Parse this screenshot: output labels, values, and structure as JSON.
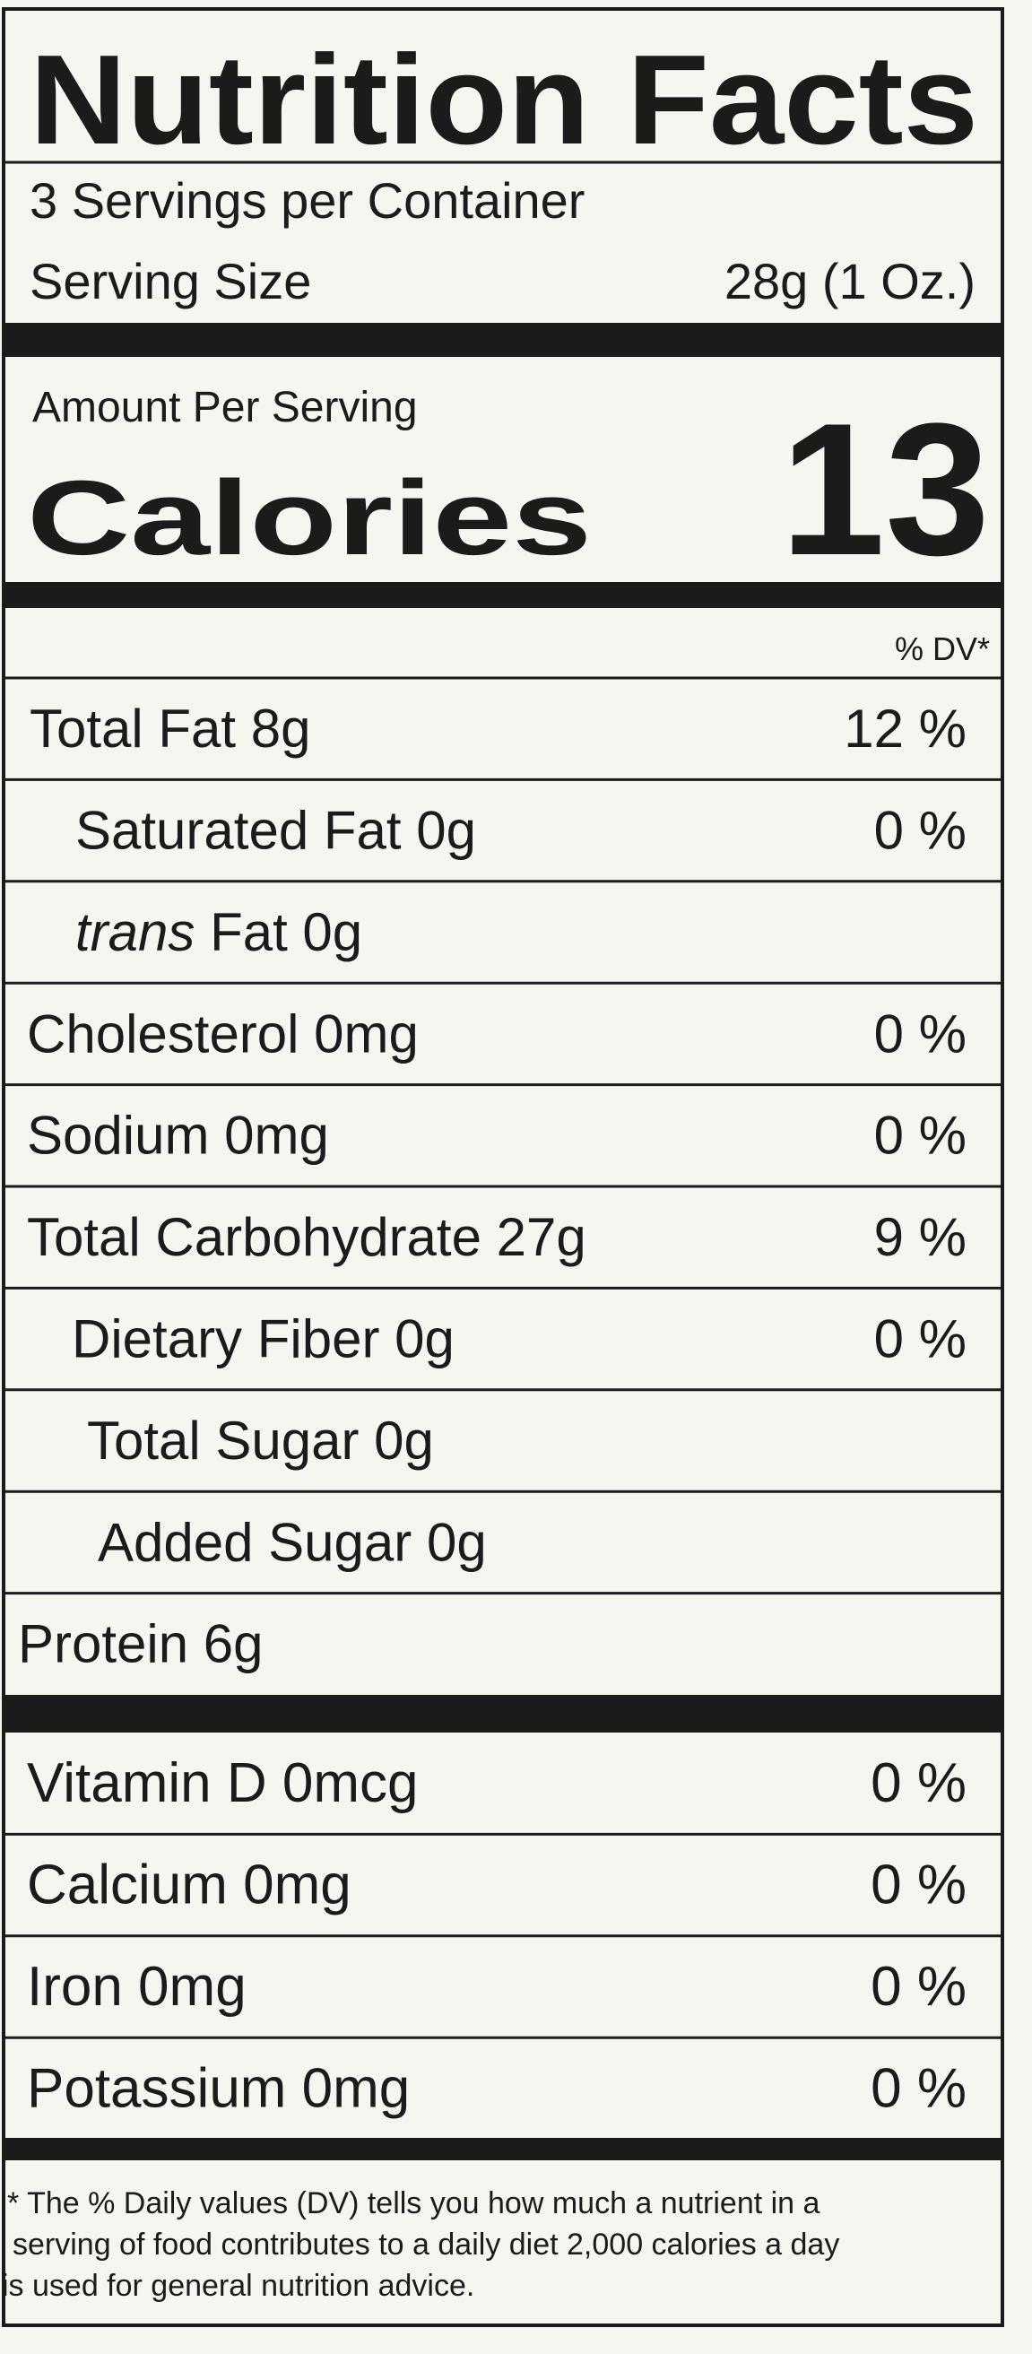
{
  "title": "Nutrition Facts",
  "servings": "3 Servings per Container",
  "serving_size": {
    "label": "Serving Size",
    "value": "28g (1 Oz.)"
  },
  "amount_per_serving": "Amount Per Serving",
  "calories": {
    "label": "Calories",
    "value": "13"
  },
  "dv_header": "% DV*",
  "nutrients": [
    {
      "label": "Total Fat 8g",
      "dv": "12 %"
    },
    {
      "label": "Saturated Fat 0g",
      "dv": "0 %"
    },
    {
      "label_italic": "trans",
      "label": "Fat 0g"
    },
    {
      "label": "Cholesterol 0mg",
      "dv": "0 %"
    },
    {
      "label": "Sodium 0mg",
      "dv": "0 %"
    },
    {
      "label": "Total Carbohydrate 27g",
      "dv": "9 %"
    },
    {
      "label": "Dietary Fiber 0g",
      "dv": "0 %"
    },
    {
      "label": "Total Sugar 0g"
    },
    {
      "label": "Added Sugar 0g"
    },
    {
      "label": "Protein 6g"
    }
  ],
  "vitamins": [
    {
      "label": "Vitamin D 0mcg",
      "dv": "0 %"
    },
    {
      "label": "Calcium 0mg",
      "dv": "0 %"
    },
    {
      "label": "Iron 0mg",
      "dv": "0 %"
    },
    {
      "label": "Potassium 0mg",
      "dv": "0 %"
    }
  ],
  "footnote": [
    "* The % Daily values (DV) tells you how much a nutrient in a",
    "serving of food contributes to a daily diet 2,000 calories a day",
    "is used for general nutrition advice."
  ]
}
